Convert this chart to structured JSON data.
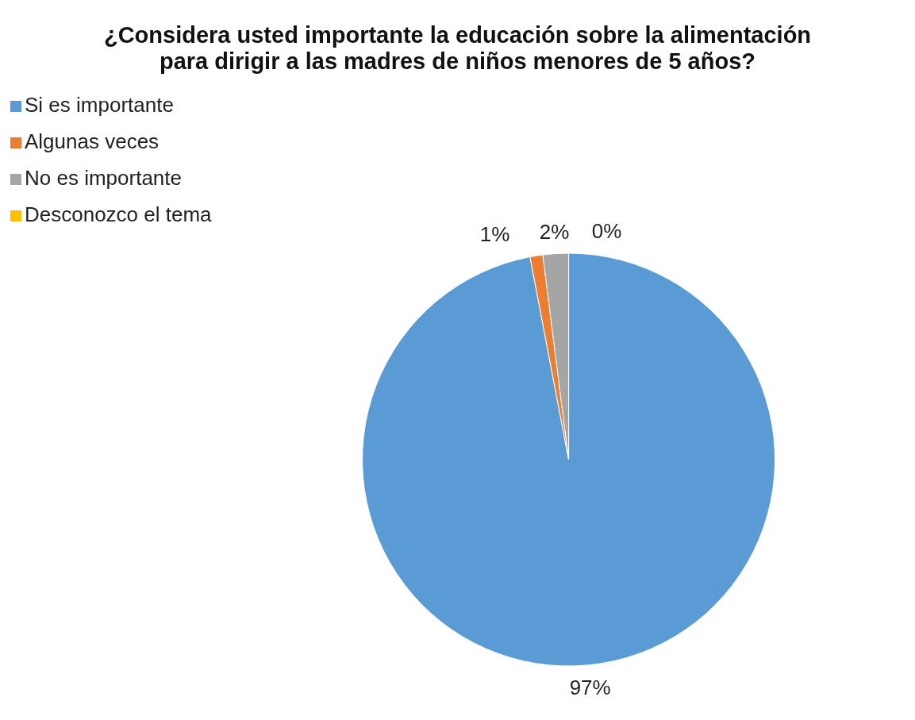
{
  "chart_data": {
    "type": "pie",
    "title": "¿Considera usted importante la educación sobre la alimentación para dirigir a las madres de niños menores de 5 años?",
    "categories": [
      "Si es importante",
      "Algunas veces",
      "No es importante",
      "Desconozco el tema"
    ],
    "values": [
      97,
      1,
      2,
      0
    ],
    "colors": [
      "#5b9bd5",
      "#ed7d31",
      "#a5a5a5",
      "#ffc000"
    ],
    "value_labels": [
      "97%",
      "1%",
      "2%",
      "0%"
    ],
    "legend": "top left"
  }
}
